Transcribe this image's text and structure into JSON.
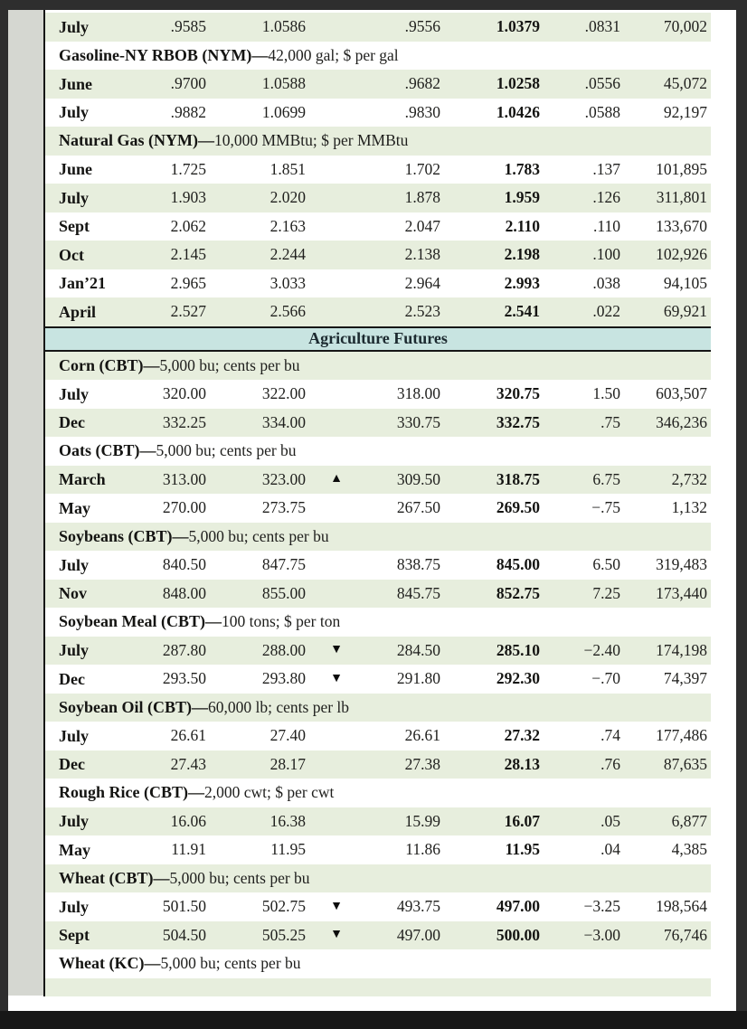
{
  "colors": {
    "row_shade": "#e7eedd",
    "band": "#c8e4e1",
    "margin": "#d5d7d1",
    "frame": "#2e2e2e"
  },
  "icons": {
    "up_triangle": "▲",
    "down_triangle": "▼"
  },
  "table": {
    "rows": [
      {
        "type": "data",
        "month": "July",
        "open": ".9585",
        "high": "1.0586",
        "ind": "",
        "low": ".9556",
        "settle": "1.0379",
        "chg": ".0831",
        "oi": "70,002"
      },
      {
        "type": "header",
        "name": "Gasoline-NY RBOB (NYM)—",
        "desc": "42,000 gal; $ per gal"
      },
      {
        "type": "data",
        "month": "June",
        "open": ".9700",
        "high": "1.0588",
        "ind": "",
        "low": ".9682",
        "settle": "1.0258",
        "chg": ".0556",
        "oi": "45,072"
      },
      {
        "type": "data",
        "month": "July",
        "open": ".9882",
        "high": "1.0699",
        "ind": "",
        "low": ".9830",
        "settle": "1.0426",
        "chg": ".0588",
        "oi": "92,197"
      },
      {
        "type": "header",
        "name": "Natural Gas (NYM)—",
        "desc": "10,000 MMBtu; $ per MMBtu"
      },
      {
        "type": "data",
        "month": "June",
        "open": "1.725",
        "high": "1.851",
        "ind": "",
        "low": "1.702",
        "settle": "1.783",
        "chg": ".137",
        "oi": "101,895"
      },
      {
        "type": "data",
        "month": "July",
        "open": "1.903",
        "high": "2.020",
        "ind": "",
        "low": "1.878",
        "settle": "1.959",
        "chg": ".126",
        "oi": "311,801"
      },
      {
        "type": "data",
        "month": "Sept",
        "open": "2.062",
        "high": "2.163",
        "ind": "",
        "low": "2.047",
        "settle": "2.110",
        "chg": ".110",
        "oi": "133,670"
      },
      {
        "type": "data",
        "month": "Oct",
        "open": "2.145",
        "high": "2.244",
        "ind": "",
        "low": "2.138",
        "settle": "2.198",
        "chg": ".100",
        "oi": "102,926"
      },
      {
        "type": "data",
        "month": "Jan’21",
        "open": "2.965",
        "high": "3.033",
        "ind": "",
        "low": "2.964",
        "settle": "2.993",
        "chg": ".038",
        "oi": "94,105"
      },
      {
        "type": "data",
        "month": "April",
        "open": "2.527",
        "high": "2.566",
        "ind": "",
        "low": "2.523",
        "settle": "2.541",
        "chg": ".022",
        "oi": "69,921"
      },
      {
        "type": "band",
        "label": "Agriculture Futures"
      },
      {
        "type": "header",
        "name": "Corn (CBT)—",
        "desc": "5,000 bu; cents per bu"
      },
      {
        "type": "data",
        "month": "July",
        "open": "320.00",
        "high": "322.00",
        "ind": "",
        "low": "318.00",
        "settle": "320.75",
        "chg": "1.50",
        "oi": "603,507"
      },
      {
        "type": "data",
        "month": "Dec",
        "open": "332.25",
        "high": "334.00",
        "ind": "",
        "low": "330.75",
        "settle": "332.75",
        "chg": ".75",
        "oi": "346,236"
      },
      {
        "type": "header",
        "name": "Oats (CBT)—",
        "desc": "5,000 bu; cents per bu"
      },
      {
        "type": "data",
        "month": "March",
        "open": "313.00",
        "high": "323.00",
        "ind": "up",
        "low": "309.50",
        "settle": "318.75",
        "chg": "6.75",
        "oi": "2,732"
      },
      {
        "type": "data",
        "month": "May",
        "open": "270.00",
        "high": "273.75",
        "ind": "",
        "low": "267.50",
        "settle": "269.50",
        "chg": "−.75",
        "oi": "1,132"
      },
      {
        "type": "header",
        "name": "Soybeans (CBT)—",
        "desc": "5,000 bu; cents per bu"
      },
      {
        "type": "data",
        "month": "July",
        "open": "840.50",
        "high": "847.75",
        "ind": "",
        "low": "838.75",
        "settle": "845.00",
        "chg": "6.50",
        "oi": "319,483"
      },
      {
        "type": "data",
        "month": "Nov",
        "open": "848.00",
        "high": "855.00",
        "ind": "",
        "low": "845.75",
        "settle": "852.75",
        "chg": "7.25",
        "oi": "173,440"
      },
      {
        "type": "header",
        "name": "Soybean Meal (CBT)—",
        "desc": "100 tons; $ per ton"
      },
      {
        "type": "data",
        "month": "July",
        "open": "287.80",
        "high": "288.00",
        "ind": "down",
        "low": "284.50",
        "settle": "285.10",
        "chg": "−2.40",
        "oi": "174,198"
      },
      {
        "type": "data",
        "month": "Dec",
        "open": "293.50",
        "high": "293.80",
        "ind": "down",
        "low": "291.80",
        "settle": "292.30",
        "chg": "−.70",
        "oi": "74,397"
      },
      {
        "type": "header",
        "name": "Soybean Oil (CBT)—",
        "desc": "60,000 lb; cents per lb"
      },
      {
        "type": "data",
        "month": "July",
        "open": "26.61",
        "high": "27.40",
        "ind": "",
        "low": "26.61",
        "settle": "27.32",
        "chg": ".74",
        "oi": "177,486"
      },
      {
        "type": "data",
        "month": "Dec",
        "open": "27.43",
        "high": "28.17",
        "ind": "",
        "low": "27.38",
        "settle": "28.13",
        "chg": ".76",
        "oi": "87,635"
      },
      {
        "type": "header",
        "name": "Rough Rice (CBT)—",
        "desc": "2,000 cwt; $ per cwt"
      },
      {
        "type": "data",
        "month": "July",
        "open": "16.06",
        "high": "16.38",
        "ind": "",
        "low": "15.99",
        "settle": "16.07",
        "chg": ".05",
        "oi": "6,877"
      },
      {
        "type": "data",
        "month": "May",
        "open": "11.91",
        "high": "11.95",
        "ind": "",
        "low": "11.86",
        "settle": "11.95",
        "chg": ".04",
        "oi": "4,385"
      },
      {
        "type": "header",
        "name": "Wheat (CBT)—",
        "desc": "5,000 bu; cents per bu"
      },
      {
        "type": "data",
        "month": "July",
        "open": "501.50",
        "high": "502.75",
        "ind": "down",
        "low": "493.75",
        "settle": "497.00",
        "chg": "−3.25",
        "oi": "198,564"
      },
      {
        "type": "data",
        "month": "Sept",
        "open": "504.50",
        "high": "505.25",
        "ind": "down",
        "low": "497.00",
        "settle": "500.00",
        "chg": "−3.00",
        "oi": "76,746"
      },
      {
        "type": "header",
        "name": "Wheat (KC)—",
        "desc": "5,000 bu; cents per bu"
      },
      {
        "type": "partial"
      }
    ]
  }
}
